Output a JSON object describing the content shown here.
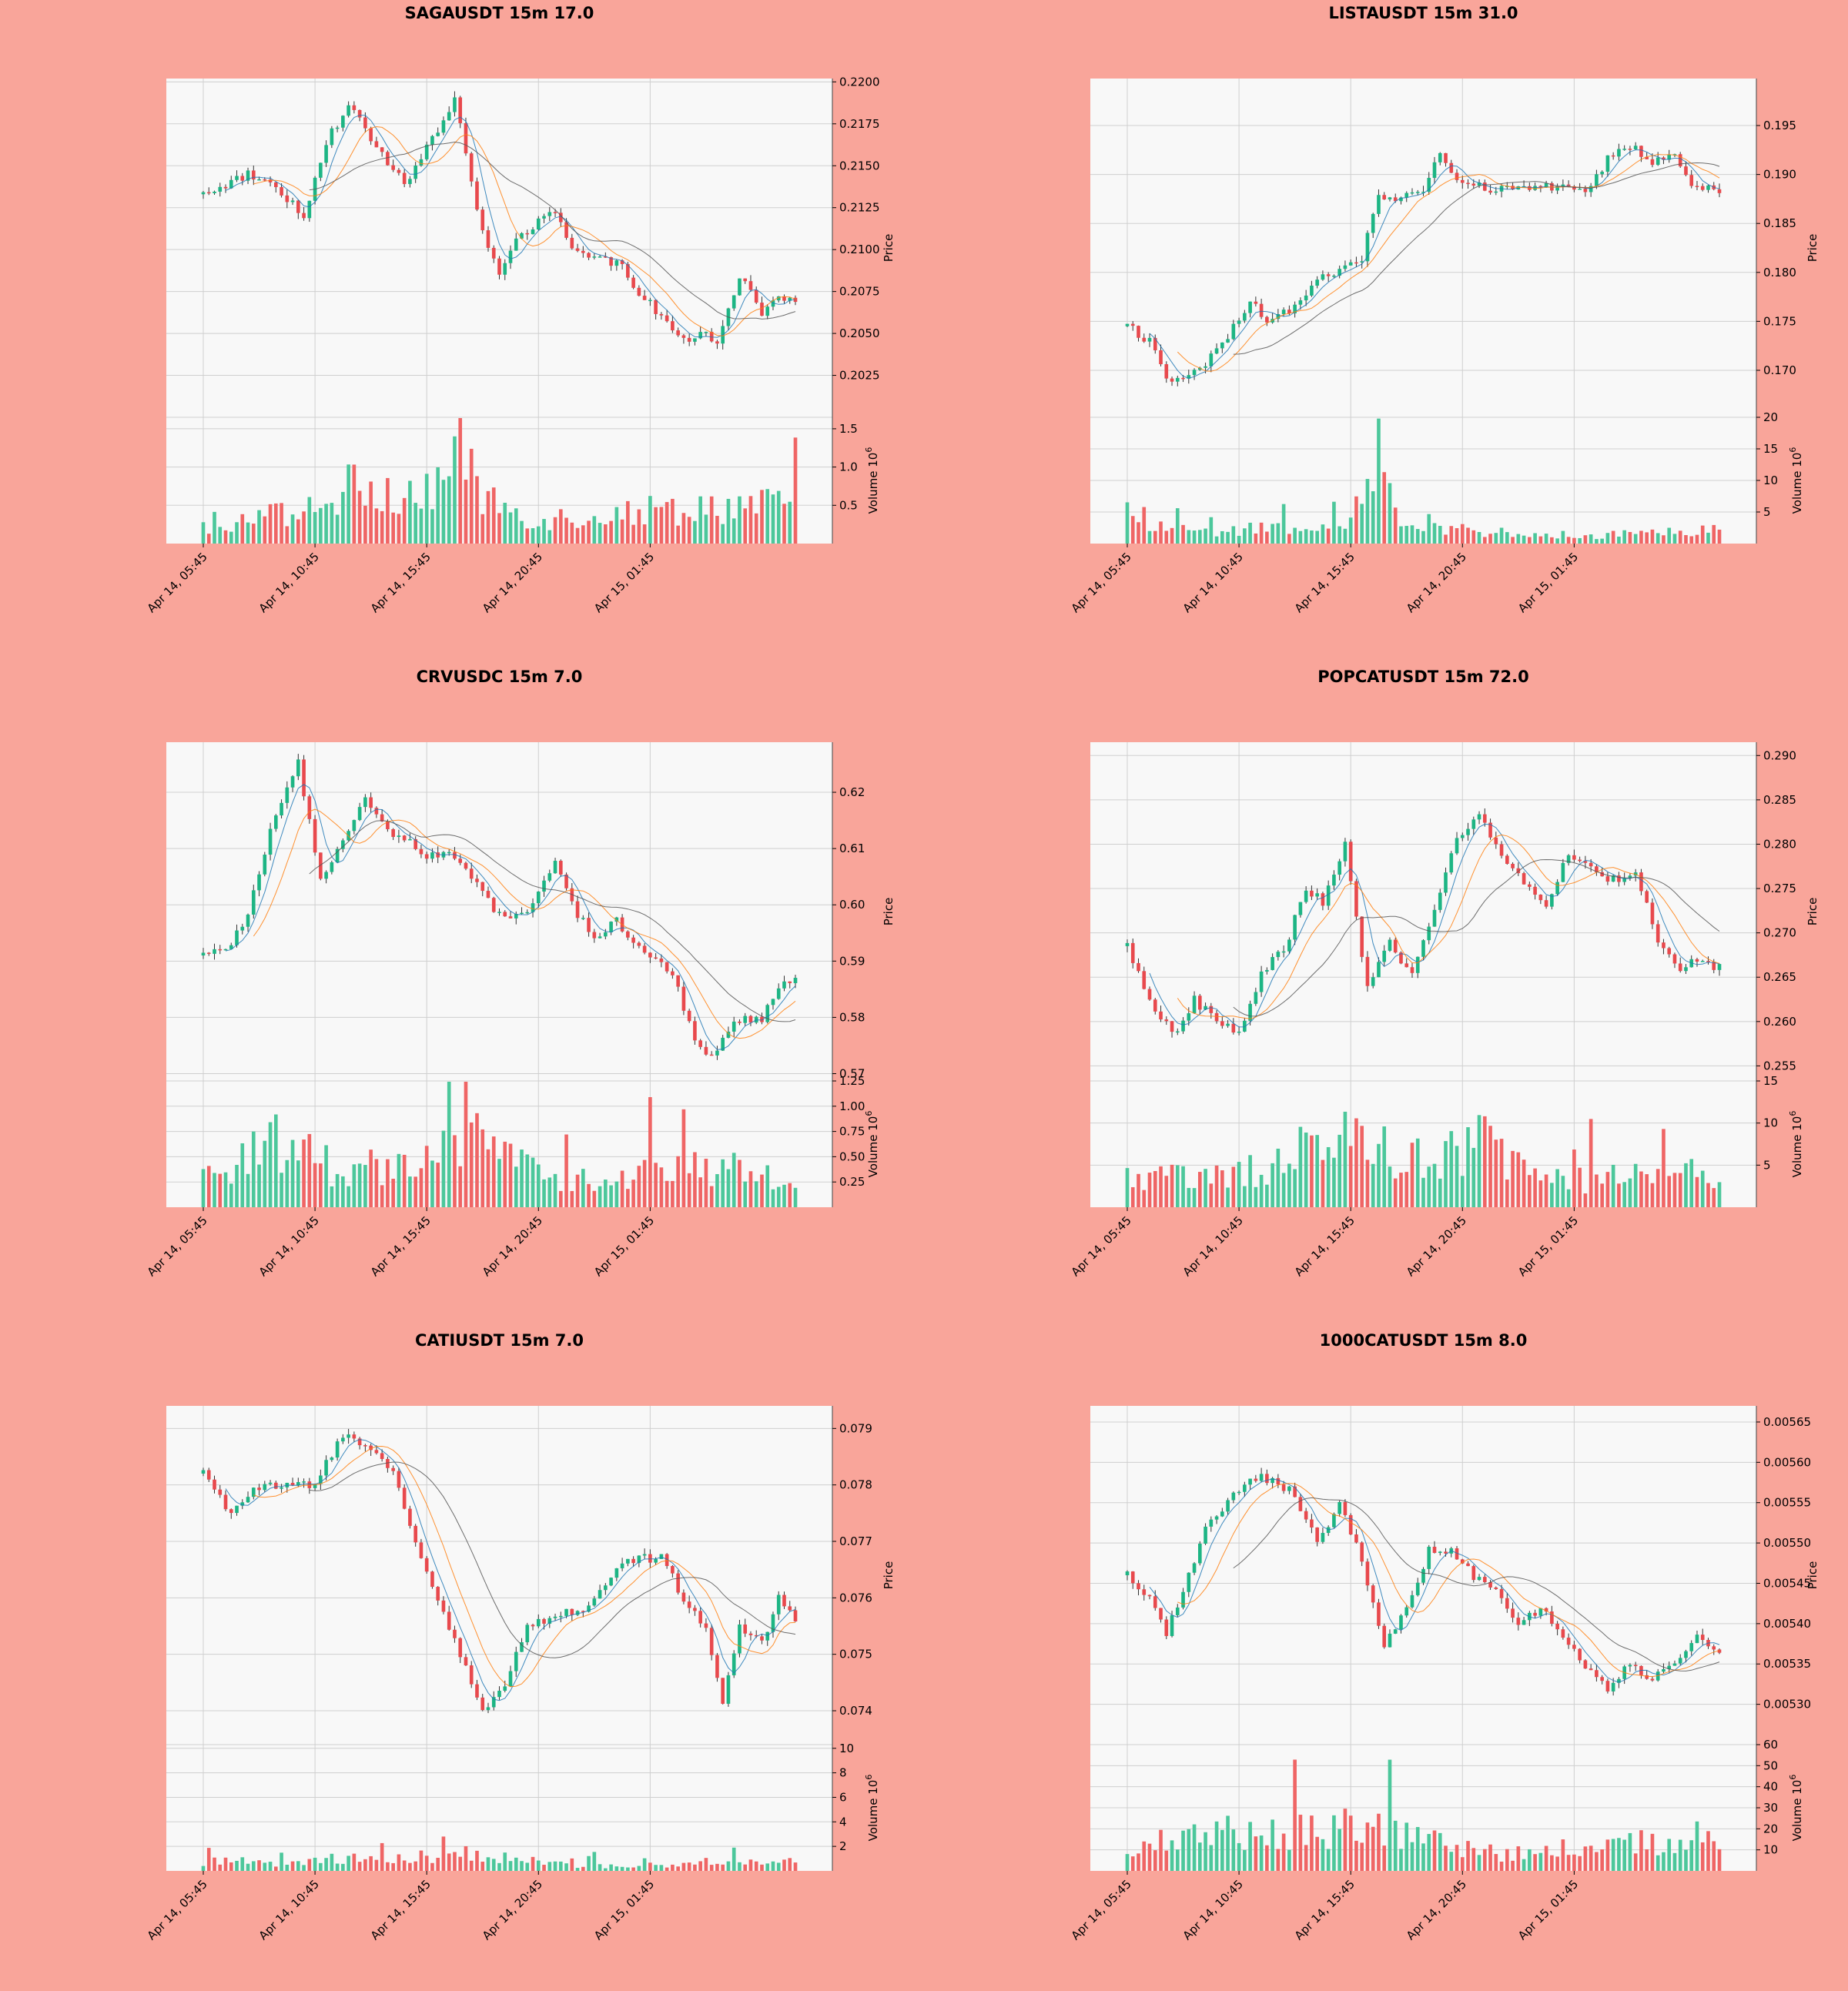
{
  "colors": {
    "background": "#f9a59a",
    "plot_bg": "#f8f8f8",
    "grid": "#cfcfcf",
    "up": "#1db584",
    "down": "#e8494d",
    "up_volume": "#4cc79b",
    "down_volume": "#ef6565",
    "ma_fast": "#1f77b4",
    "ma_mid": "#ff7f0e",
    "ma_slow": "#555555"
  },
  "chart_data": [
    {
      "type": "candlestick",
      "title": "SAGAUSDT 15m 17.0",
      "ylabel": "Price",
      "vlabel": "Volume",
      "vexp": "6",
      "x_ticks": [
        "Apr 14, 05:45",
        "Apr 14, 10:45",
        "Apr 14, 15:45",
        "Apr 14, 20:45",
        "Apr 15, 01:45"
      ],
      "price_ticks": [
        "0.2025",
        "0.2050",
        "0.2075",
        "0.2100",
        "0.2125",
        "0.2150",
        "0.2175",
        "0.2200"
      ],
      "price_range": [
        0.2,
        0.2202
      ],
      "volume_ticks": [
        "0.5",
        "1.0",
        "1.5"
      ],
      "volume_range": [
        0,
        1.65
      ],
      "anchors": [
        {
          "i": 0,
          "p": 0.2133
        },
        {
          "i": 8,
          "p": 0.2145
        },
        {
          "i": 13,
          "p": 0.2138
        },
        {
          "i": 18,
          "p": 0.212
        },
        {
          "i": 22,
          "p": 0.2165
        },
        {
          "i": 26,
          "p": 0.2185
        },
        {
          "i": 32,
          "p": 0.2158
        },
        {
          "i": 36,
          "p": 0.2138
        },
        {
          "i": 40,
          "p": 0.216
        },
        {
          "i": 45,
          "p": 0.219
        },
        {
          "i": 50,
          "p": 0.211
        },
        {
          "i": 53,
          "p": 0.2085
        },
        {
          "i": 57,
          "p": 0.211
        },
        {
          "i": 63,
          "p": 0.2122
        },
        {
          "i": 66,
          "p": 0.21
        },
        {
          "i": 70,
          "p": 0.2095
        },
        {
          "i": 75,
          "p": 0.209
        },
        {
          "i": 78,
          "p": 0.2075
        },
        {
          "i": 82,
          "p": 0.206
        },
        {
          "i": 86,
          "p": 0.2045
        },
        {
          "i": 89,
          "p": 0.205
        },
        {
          "i": 92,
          "p": 0.2045
        },
        {
          "i": 96,
          "p": 0.2085
        },
        {
          "i": 100,
          "p": 0.2062
        },
        {
          "i": 104,
          "p": 0.2072
        },
        {
          "i": 106,
          "p": 0.2068
        }
      ],
      "volume_profile": [
        {
          "i": 0,
          "v": 0.25
        },
        {
          "i": 20,
          "v": 0.5
        },
        {
          "i": 26,
          "v": 0.8
        },
        {
          "i": 38,
          "v": 0.6
        },
        {
          "i": 46,
          "v": 1.3
        },
        {
          "i": 50,
          "v": 0.7
        },
        {
          "i": 60,
          "v": 0.35
        },
        {
          "i": 75,
          "v": 0.45
        },
        {
          "i": 90,
          "v": 0.55
        },
        {
          "i": 106,
          "v": 0.55
        }
      ]
    },
    {
      "type": "candlestick",
      "title": "LISTAUSDT 15m 31.0",
      "ylabel": "Price",
      "vlabel": "Volume",
      "vexp": "6",
      "x_ticks": [
        "Apr 14, 05:45",
        "Apr 14, 10:45",
        "Apr 14, 15:45",
        "Apr 14, 20:45",
        "Apr 15, 01:45"
      ],
      "price_ticks": [
        "0.170",
        "0.175",
        "0.180",
        "0.185",
        "0.190",
        "0.195"
      ],
      "price_range": [
        0.1652,
        0.1998
      ],
      "volume_ticks": [
        "5",
        "10",
        "15",
        "20"
      ],
      "volume_range": [
        0,
        20
      ],
      "anchors": [
        {
          "i": 0,
          "p": 0.1745
        },
        {
          "i": 4,
          "p": 0.173
        },
        {
          "i": 7,
          "p": 0.169
        },
        {
          "i": 10,
          "p": 0.1692
        },
        {
          "i": 14,
          "p": 0.1705
        },
        {
          "i": 18,
          "p": 0.1735
        },
        {
          "i": 22,
          "p": 0.177
        },
        {
          "i": 25,
          "p": 0.175
        },
        {
          "i": 30,
          "p": 0.1765
        },
        {
          "i": 34,
          "p": 0.1795
        },
        {
          "i": 38,
          "p": 0.18
        },
        {
          "i": 42,
          "p": 0.1815
        },
        {
          "i": 45,
          "p": 0.188
        },
        {
          "i": 48,
          "p": 0.1875
        },
        {
          "i": 53,
          "p": 0.1885
        },
        {
          "i": 56,
          "p": 0.192
        },
        {
          "i": 60,
          "p": 0.189
        },
        {
          "i": 66,
          "p": 0.1885
        },
        {
          "i": 72,
          "p": 0.1888
        },
        {
          "i": 78,
          "p": 0.1885
        },
        {
          "i": 82,
          "p": 0.188
        },
        {
          "i": 86,
          "p": 0.1915
        },
        {
          "i": 90,
          "p": 0.193
        },
        {
          "i": 94,
          "p": 0.191
        },
        {
          "i": 98,
          "p": 0.1925
        },
        {
          "i": 101,
          "p": 0.1885
        }
      ],
      "volume_profile": [
        {
          "i": 0,
          "v": 5.5
        },
        {
          "i": 8,
          "v": 2.5
        },
        {
          "i": 20,
          "v": 2.5
        },
        {
          "i": 38,
          "v": 2.5
        },
        {
          "i": 45,
          "v": 11.0
        },
        {
          "i": 50,
          "v": 4.0
        },
        {
          "i": 58,
          "v": 3.0
        },
        {
          "i": 70,
          "v": 1.5
        },
        {
          "i": 85,
          "v": 1.5
        },
        {
          "i": 95,
          "v": 1.8
        },
        {
          "i": 101,
          "v": 2.5
        }
      ]
    },
    {
      "type": "candlestick",
      "title": "CRVUSDC 15m 7.0",
      "ylabel": "Price",
      "vlabel": "Volume",
      "vexp": "6",
      "x_ticks": [
        "Apr 14, 05:45",
        "Apr 14, 10:45",
        "Apr 14, 15:45",
        "Apr 14, 20:45",
        "Apr 15, 01:45"
      ],
      "price_ticks": [
        "0.57",
        "0.58",
        "0.59",
        "0.60",
        "0.61",
        "0.62"
      ],
      "price_range": [
        0.5687,
        0.6289
      ],
      "volume_ticks": [
        "0.25",
        "0.50",
        "0.75",
        "1.00",
        "1.25"
      ],
      "volume_range": [
        0,
        1.25
      ],
      "anchors": [
        {
          "i": 0,
          "p": 0.591
        },
        {
          "i": 4,
          "p": 0.592
        },
        {
          "i": 8,
          "p": 0.598
        },
        {
          "i": 12,
          "p": 0.613
        },
        {
          "i": 17,
          "p": 0.625
        },
        {
          "i": 21,
          "p": 0.605
        },
        {
          "i": 24,
          "p": 0.61
        },
        {
          "i": 29,
          "p": 0.619
        },
        {
          "i": 33,
          "p": 0.613
        },
        {
          "i": 37,
          "p": 0.612
        },
        {
          "i": 40,
          "p": 0.608
        },
        {
          "i": 44,
          "p": 0.61
        },
        {
          "i": 48,
          "p": 0.605
        },
        {
          "i": 53,
          "p": 0.598
        },
        {
          "i": 58,
          "p": 0.599
        },
        {
          "i": 63,
          "p": 0.608
        },
        {
          "i": 66,
          "p": 0.6
        },
        {
          "i": 70,
          "p": 0.594
        },
        {
          "i": 74,
          "p": 0.597
        },
        {
          "i": 78,
          "p": 0.592
        },
        {
          "i": 84,
          "p": 0.588
        },
        {
          "i": 88,
          "p": 0.576
        },
        {
          "i": 91,
          "p": 0.573
        },
        {
          "i": 95,
          "p": 0.579
        },
        {
          "i": 100,
          "p": 0.58
        },
        {
          "i": 104,
          "p": 0.586
        },
        {
          "i": 106,
          "p": 0.587
        }
      ],
      "volume_profile": [
        {
          "i": 0,
          "v": 0.3
        },
        {
          "i": 8,
          "v": 0.6
        },
        {
          "i": 14,
          "v": 0.75
        },
        {
          "i": 24,
          "v": 0.4
        },
        {
          "i": 40,
          "v": 0.55
        },
        {
          "i": 48,
          "v": 0.75
        },
        {
          "i": 60,
          "v": 0.35
        },
        {
          "i": 75,
          "v": 0.28
        },
        {
          "i": 87,
          "v": 0.5
        },
        {
          "i": 100,
          "v": 0.35
        },
        {
          "i": 106,
          "v": 0.2
        }
      ]
    },
    {
      "type": "candlestick",
      "title": "POPCATUSDT 15m 72.0",
      "ylabel": "Price",
      "vlabel": "Volume",
      "vexp": "6",
      "x_ticks": [
        "Apr 14, 05:45",
        "Apr 14, 10:45",
        "Apr 14, 15:45",
        "Apr 14, 20:45",
        "Apr 15, 01:45"
      ],
      "price_ticks": [
        "0.255",
        "0.260",
        "0.265",
        "0.270",
        "0.275",
        "0.280",
        "0.285",
        "0.290"
      ],
      "price_range": [
        0.2533,
        0.2915
      ],
      "volume_ticks": [
        "5",
        "10",
        "15"
      ],
      "volume_range": [
        0,
        15
      ],
      "anchors": [
        {
          "i": 0,
          "p": 0.2685
        },
        {
          "i": 3,
          "p": 0.264
        },
        {
          "i": 6,
          "p": 0.26
        },
        {
          "i": 9,
          "p": 0.259
        },
        {
          "i": 12,
          "p": 0.2625
        },
        {
          "i": 16,
          "p": 0.26
        },
        {
          "i": 20,
          "p": 0.2585
        },
        {
          "i": 24,
          "p": 0.2655
        },
        {
          "i": 28,
          "p": 0.268
        },
        {
          "i": 32,
          "p": 0.275
        },
        {
          "i": 35,
          "p": 0.2735
        },
        {
          "i": 39,
          "p": 0.28
        },
        {
          "i": 43,
          "p": 0.2635
        },
        {
          "i": 47,
          "p": 0.269
        },
        {
          "i": 51,
          "p": 0.265
        },
        {
          "i": 55,
          "p": 0.273
        },
        {
          "i": 59,
          "p": 0.281
        },
        {
          "i": 63,
          "p": 0.283
        },
        {
          "i": 67,
          "p": 0.279
        },
        {
          "i": 71,
          "p": 0.276
        },
        {
          "i": 75,
          "p": 0.273
        },
        {
          "i": 79,
          "p": 0.279
        },
        {
          "i": 83,
          "p": 0.277
        },
        {
          "i": 87,
          "p": 0.276
        },
        {
          "i": 91,
          "p": 0.277
        },
        {
          "i": 95,
          "p": 0.269
        },
        {
          "i": 99,
          "p": 0.266
        },
        {
          "i": 103,
          "p": 0.267
        },
        {
          "i": 106,
          "p": 0.266
        }
      ],
      "volume_profile": [
        {
          "i": 0,
          "v": 3.5
        },
        {
          "i": 10,
          "v": 4.0
        },
        {
          "i": 20,
          "v": 4.0
        },
        {
          "i": 32,
          "v": 8.0
        },
        {
          "i": 42,
          "v": 9.0
        },
        {
          "i": 55,
          "v": 5.5
        },
        {
          "i": 63,
          "v": 9.0
        },
        {
          "i": 72,
          "v": 4.0
        },
        {
          "i": 85,
          "v": 3.5
        },
        {
          "i": 98,
          "v": 6.0
        },
        {
          "i": 106,
          "v": 4.0
        }
      ]
    },
    {
      "type": "candlestick",
      "title": "CATIUSDT 15m 7.0",
      "ylabel": "Price",
      "vlabel": "Volume",
      "vexp": "6",
      "x_ticks": [
        "Apr 14, 05:45",
        "Apr 14, 10:45",
        "Apr 14, 15:45",
        "Apr 14, 20:45",
        "Apr 15, 01:45"
      ],
      "price_ticks": [
        "0.074",
        "0.075",
        "0.076",
        "0.077",
        "0.078",
        "0.079"
      ],
      "price_range": [
        0.0734,
        0.0794
      ],
      "volume_ticks": [
        "2",
        "4",
        "6",
        "8",
        "10"
      ],
      "volume_range": [
        0,
        10.3
      ],
      "anchors": [
        {
          "i": 0,
          "p": 0.0782
        },
        {
          "i": 5,
          "p": 0.0775
        },
        {
          "i": 9,
          "p": 0.0779
        },
        {
          "i": 14,
          "p": 0.078
        },
        {
          "i": 20,
          "p": 0.078
        },
        {
          "i": 25,
          "p": 0.0789
        },
        {
          "i": 29,
          "p": 0.0787
        },
        {
          "i": 34,
          "p": 0.0782
        },
        {
          "i": 38,
          "p": 0.077
        },
        {
          "i": 42,
          "p": 0.076
        },
        {
          "i": 46,
          "p": 0.075
        },
        {
          "i": 50,
          "p": 0.074
        },
        {
          "i": 54,
          "p": 0.0745
        },
        {
          "i": 58,
          "p": 0.0755
        },
        {
          "i": 63,
          "p": 0.0757
        },
        {
          "i": 68,
          "p": 0.0758
        },
        {
          "i": 72,
          "p": 0.0762
        },
        {
          "i": 76,
          "p": 0.0767
        },
        {
          "i": 82,
          "p": 0.0767
        },
        {
          "i": 86,
          "p": 0.076
        },
        {
          "i": 90,
          "p": 0.0755
        },
        {
          "i": 93,
          "p": 0.0742
        },
        {
          "i": 96,
          "p": 0.0755
        },
        {
          "i": 100,
          "p": 0.0752
        },
        {
          "i": 103,
          "p": 0.076
        },
        {
          "i": 106,
          "p": 0.0756
        }
      ],
      "volume_profile": [
        {
          "i": 0,
          "v": 0.8
        },
        {
          "i": 6,
          "v": 1.0
        },
        {
          "i": 12,
          "v": 0.6
        },
        {
          "i": 24,
          "v": 1.2
        },
        {
          "i": 38,
          "v": 1.2
        },
        {
          "i": 46,
          "v": 1.6
        },
        {
          "i": 56,
          "v": 1.0
        },
        {
          "i": 70,
          "v": 0.4
        },
        {
          "i": 85,
          "v": 0.6
        },
        {
          "i": 95,
          "v": 1.0
        },
        {
          "i": 106,
          "v": 0.8
        }
      ]
    },
    {
      "type": "candlestick",
      "title": "1000CATUSDT 15m 8.0",
      "ylabel": "Price",
      "vlabel": "Volume",
      "vexp": "6",
      "x_ticks": [
        "Apr 14, 05:45",
        "Apr 14, 10:45",
        "Apr 14, 15:45",
        "Apr 14, 20:45",
        "Apr 15, 01:45"
      ],
      "price_ticks": [
        "0.00530",
        "0.00535",
        "0.00540",
        "0.00545",
        "0.00550",
        "0.00555",
        "0.00560",
        "0.00565"
      ],
      "price_range": [
        0.00525,
        0.00567
      ],
      "volume_ticks": [
        "10",
        "20",
        "30",
        "40",
        "50",
        "60"
      ],
      "volume_range": [
        0,
        60
      ],
      "anchors": [
        {
          "i": 0,
          "p": 0.00546
        },
        {
          "i": 4,
          "p": 0.00543
        },
        {
          "i": 7,
          "p": 0.00539
        },
        {
          "i": 10,
          "p": 0.00544
        },
        {
          "i": 14,
          "p": 0.00552
        },
        {
          "i": 18,
          "p": 0.00555
        },
        {
          "i": 22,
          "p": 0.00558
        },
        {
          "i": 26,
          "p": 0.00558
        },
        {
          "i": 30,
          "p": 0.00556
        },
        {
          "i": 34,
          "p": 0.0055
        },
        {
          "i": 38,
          "p": 0.00555
        },
        {
          "i": 42,
          "p": 0.00548
        },
        {
          "i": 46,
          "p": 0.00537
        },
        {
          "i": 50,
          "p": 0.00542
        },
        {
          "i": 54,
          "p": 0.00549
        },
        {
          "i": 58,
          "p": 0.00549
        },
        {
          "i": 62,
          "p": 0.00546
        },
        {
          "i": 66,
          "p": 0.00544
        },
        {
          "i": 70,
          "p": 0.0054
        },
        {
          "i": 74,
          "p": 0.00542
        },
        {
          "i": 78,
          "p": 0.00538
        },
        {
          "i": 82,
          "p": 0.00535
        },
        {
          "i": 86,
          "p": 0.00532
        },
        {
          "i": 90,
          "p": 0.00535
        },
        {
          "i": 94,
          "p": 0.00533
        },
        {
          "i": 98,
          "p": 0.00535
        },
        {
          "i": 102,
          "p": 0.00539
        },
        {
          "i": 106,
          "p": 0.00536
        }
      ],
      "volume_profile": [
        {
          "i": 0,
          "v": 14
        },
        {
          "i": 10,
          "v": 15
        },
        {
          "i": 20,
          "v": 22
        },
        {
          "i": 30,
          "v": 18
        },
        {
          "i": 42,
          "v": 24
        },
        {
          "i": 50,
          "v": 20
        },
        {
          "i": 60,
          "v": 12
        },
        {
          "i": 72,
          "v": 8
        },
        {
          "i": 85,
          "v": 16
        },
        {
          "i": 95,
          "v": 14
        },
        {
          "i": 106,
          "v": 15
        }
      ]
    }
  ]
}
